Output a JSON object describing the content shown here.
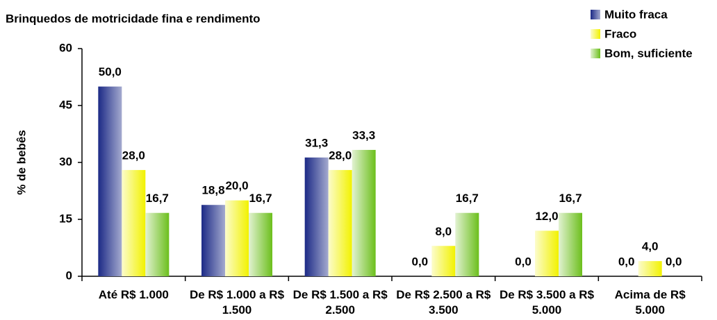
{
  "chart_data": {
    "type": "bar",
    "title": "Brinquedos de motricidade fina e rendimento",
    "y_label": "% de bebês",
    "categories": [
      "Até R$ 1.000",
      "De R$ 1.000 a R$ 1.500",
      "De R$ 1.500 a R$ 2.500",
      "De R$ 2.500 a R$ 3.500",
      "De R$ 3.500 a R$ 5.000",
      "Acima de R$ 5.000"
    ],
    "series": [
      {
        "name": "Muito fraca",
        "color": "#1c2a86",
        "values": [
          50.0,
          18.8,
          31.3,
          0.0,
          0.0,
          0.0
        ],
        "value_labels": [
          "50,0",
          "18,8",
          "31,3",
          "0,0",
          "0,0",
          "0,0"
        ]
      },
      {
        "name": "Fraco",
        "color": "#f2f200",
        "values": [
          28.0,
          20.0,
          28.0,
          8.0,
          12.0,
          4.0
        ],
        "value_labels": [
          "28,0",
          "20,0",
          "28,0",
          "8,0",
          "12,0",
          "4,0"
        ]
      },
      {
        "name": "Bom, suficiente",
        "color": "#6cbf1c",
        "values": [
          16.7,
          16.7,
          33.3,
          16.7,
          16.7,
          0.0
        ],
        "value_labels": [
          "16,7",
          "16,7",
          "33,3",
          "16,7",
          "16,7",
          "0,0"
        ]
      }
    ],
    "ylim": [
      0,
      60
    ],
    "yticks": [
      0,
      15,
      30,
      45,
      60
    ],
    "grid": false,
    "legend": "top-right"
  }
}
